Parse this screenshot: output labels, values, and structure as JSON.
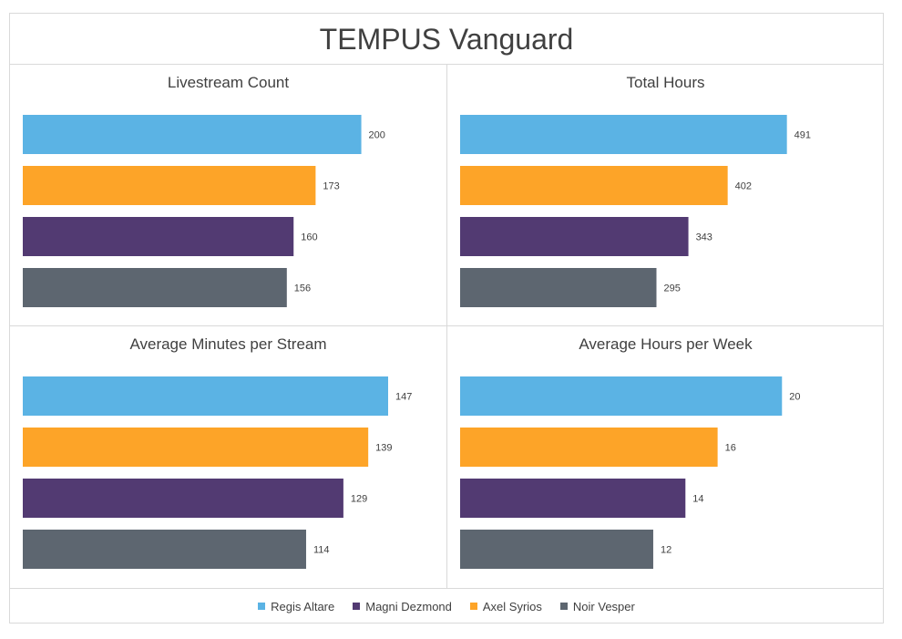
{
  "chart": {
    "title": "TEMPUS Vanguard"
  },
  "legend": [
    {
      "name": "Regis Altare",
      "color": "#5bb3e4"
    },
    {
      "name": "Magni Dezmond",
      "color": "#523a72"
    },
    {
      "name": "Axel Syrios",
      "color": "#fda428"
    },
    {
      "name": "Noir Vesper",
      "color": "#5d6670"
    }
  ],
  "chart_data": [
    {
      "type": "bar",
      "orientation": "horizontal",
      "title": "Livestream Count",
      "categories": [
        "Regis Altare",
        "Axel Syrios",
        "Magni Dezmond",
        "Noir Vesper"
      ],
      "values": [
        200,
        173,
        160,
        156
      ],
      "colors": [
        "#5bb3e4",
        "#fda428",
        "#523a72",
        "#5d6670"
      ],
      "xlim": [
        0,
        232
      ]
    },
    {
      "type": "bar",
      "orientation": "horizontal",
      "title": "Total Hours",
      "categories": [
        "Regis Altare",
        "Axel Syrios",
        "Magni Dezmond",
        "Noir Vesper"
      ],
      "values": [
        491,
        402,
        343,
        295
      ],
      "colors": [
        "#5bb3e4",
        "#fda428",
        "#523a72",
        "#5d6670"
      ],
      "xlim": [
        0,
        590
      ]
    },
    {
      "type": "bar",
      "orientation": "horizontal",
      "title": "Average Minutes per Stream",
      "categories": [
        "Regis Altare",
        "Axel Syrios",
        "Magni Dezmond",
        "Noir Vesper"
      ],
      "values": [
        147,
        139,
        129,
        114
      ],
      "colors": [
        "#5bb3e4",
        "#fda428",
        "#523a72",
        "#5d6670"
      ],
      "xlim": [
        0,
        158
      ]
    },
    {
      "type": "bar",
      "orientation": "horizontal",
      "title": "Average Hours per Week",
      "categories": [
        "Regis Altare",
        "Axel Syrios",
        "Magni Dezmond",
        "Noir Vesper"
      ],
      "values": [
        20,
        16,
        14,
        12
      ],
      "colors": [
        "#5bb3e4",
        "#fda428",
        "#523a72",
        "#5d6670"
      ],
      "xlim": [
        0,
        24.4
      ]
    }
  ]
}
